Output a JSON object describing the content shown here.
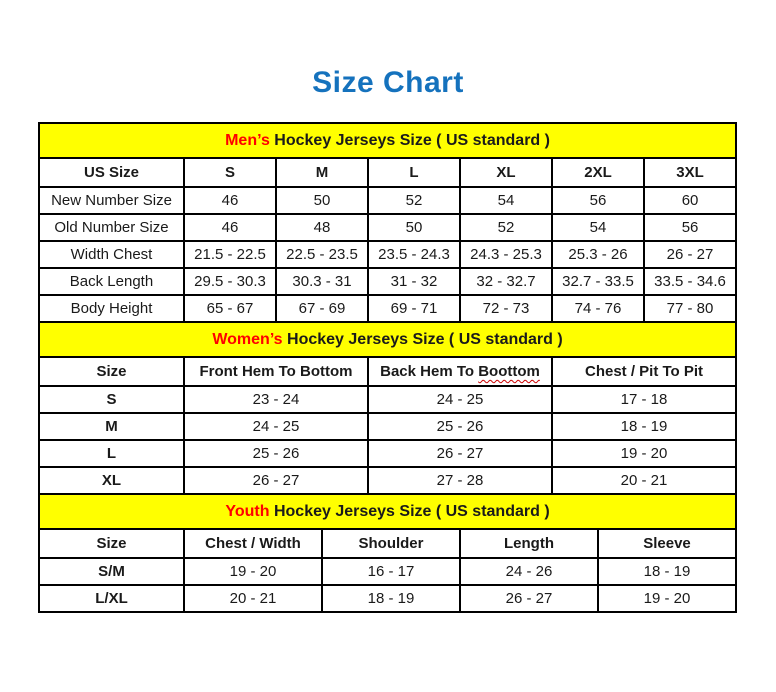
{
  "page": {
    "title": "Size Chart"
  },
  "colors": {
    "title_blue": "#1572BD",
    "section_highlight_red": "#FF0000",
    "section_header_yellow": "#FFFF00",
    "border_black": "#000000"
  },
  "chart_data": [
    {
      "type": "table",
      "title_highlight": "Men’s",
      "title_rest": " Hockey Jerseys Size ( US standard )",
      "columns": [
        "US Size",
        "S",
        "M",
        "L",
        "XL",
        "2XL",
        "3XL"
      ],
      "rows": [
        {
          "label": "New Number Size",
          "values": [
            "46",
            "50",
            "52",
            "54",
            "56",
            "60"
          ]
        },
        {
          "label": "Old Number Size",
          "values": [
            "46",
            "48",
            "50",
            "52",
            "54",
            "56"
          ]
        },
        {
          "label": "Width Chest",
          "values": [
            "21.5 - 22.5",
            "22.5 - 23.5",
            "23.5 - 24.3",
            "24.3 - 25.3",
            "25.3 - 26",
            "26 - 27"
          ]
        },
        {
          "label": "Back Length",
          "values": [
            "29.5 - 30.3",
            "30.3 - 31",
            "31 - 32",
            "32 - 32.7",
            "32.7 - 33.5",
            "33.5 - 34.6"
          ]
        },
        {
          "label": "Body Height",
          "values": [
            "65 - 67",
            "67 - 69",
            "69 - 71",
            "72 - 73",
            "74 - 76",
            "77 - 80"
          ]
        }
      ]
    },
    {
      "type": "table",
      "title_highlight": "Women’s",
      "title_rest": " Hockey Jerseys Size ( US standard )",
      "columns": [
        "Size",
        "Front Hem To Bottom",
        "Back Hem To Boottom",
        "Chest / Pit To Pit"
      ],
      "spellcheck": {
        "prefix": "Back Hem To ",
        "word": "Boottom"
      },
      "rows": [
        {
          "label": "S",
          "values": [
            "23 - 24",
            "24 - 25",
            "17 - 18"
          ]
        },
        {
          "label": "M",
          "values": [
            "24 - 25",
            "25 - 26",
            "18 - 19"
          ]
        },
        {
          "label": "L",
          "values": [
            "25 - 26",
            "26 - 27",
            "19 - 20"
          ]
        },
        {
          "label": "XL",
          "values": [
            "26 - 27",
            "27 - 28",
            "20 - 21"
          ]
        }
      ]
    },
    {
      "type": "table",
      "title_highlight": "Youth",
      "title_rest": " Hockey Jerseys Size ( US standard )",
      "columns": [
        "Size",
        "Chest / Width",
        "Shoulder",
        "Length",
        "Sleeve"
      ],
      "rows": [
        {
          "label": "S/M",
          "values": [
            "19 - 20",
            "16 - 17",
            "24 - 26",
            "18 - 19"
          ]
        },
        {
          "label": "L/XL",
          "values": [
            "20 - 21",
            "18 - 19",
            "26 - 27",
            "19 - 20"
          ]
        }
      ]
    }
  ]
}
